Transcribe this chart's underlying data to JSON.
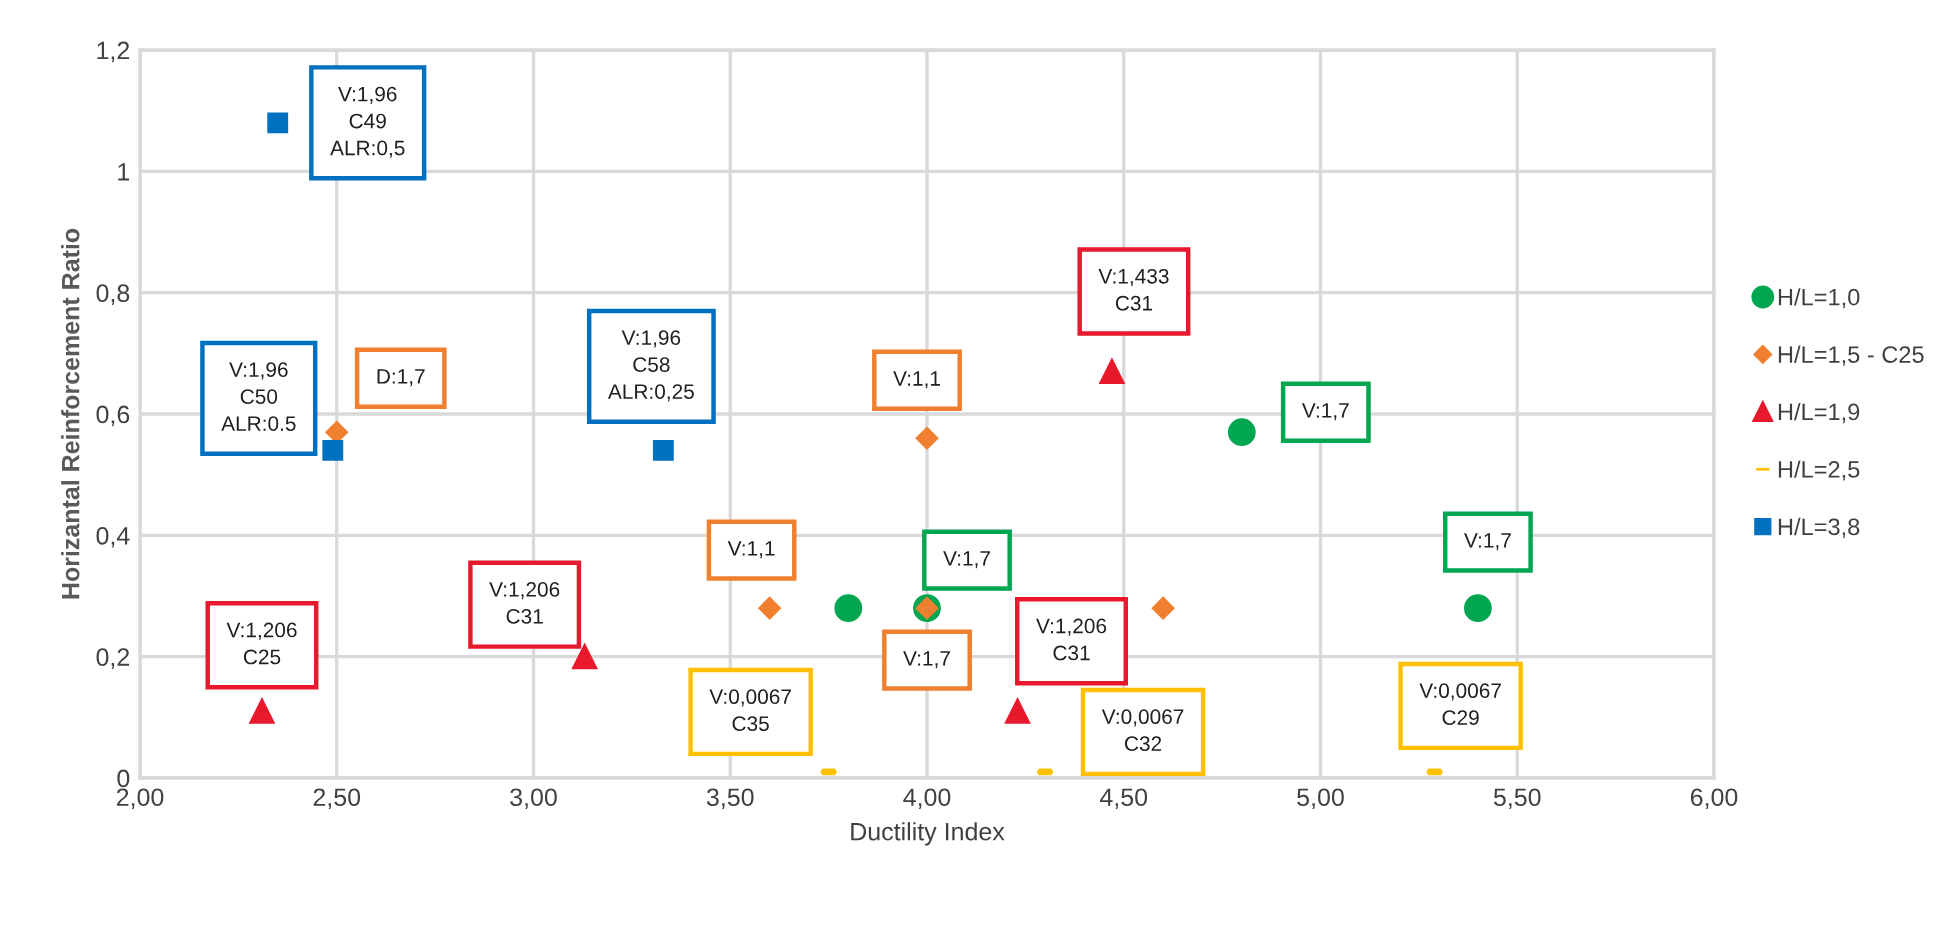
{
  "chart_data": {
    "type": "scatter",
    "xlabel": "Ductility Index",
    "ylabel": "Horizantal Reinforcement Ratio",
    "xlim": [
      2,
      6
    ],
    "ylim": [
      0,
      1.2
    ],
    "xticks": [
      {
        "value": 2,
        "label": "2,00"
      },
      {
        "value": 2.5,
        "label": "2,50"
      },
      {
        "value": 3,
        "label": "3,00"
      },
      {
        "value": 3.5,
        "label": "3,50"
      },
      {
        "value": 4,
        "label": "4,00"
      },
      {
        "value": 4.5,
        "label": "4,50"
      },
      {
        "value": 5,
        "label": "5,00"
      },
      {
        "value": 5.5,
        "label": "5,50"
      },
      {
        "value": 6,
        "label": "6,00"
      }
    ],
    "yticks": [
      0,
      {
        "value": 0.2,
        "label": "0,2"
      },
      {
        "value": 0.4,
        "label": "0,4"
      },
      {
        "value": 0.6,
        "label": "0,6"
      },
      {
        "value": 0.8,
        "label": "0,8"
      },
      1,
      {
        "value": 1.2,
        "label": "1,2"
      }
    ],
    "grid": true,
    "legend": "right",
    "series": [
      {
        "name": "H/L=1,0",
        "color": "#00a650",
        "marker": "circle",
        "x": [
          3.8,
          4.0,
          4.8,
          5.4
        ],
        "values": [
          0.28,
          0.28,
          0.57,
          0.28
        ]
      },
      {
        "name": "H/L=1,5 - C25",
        "color": "#f07f2f",
        "marker": "diamond",
        "x": [
          2.5,
          3.6,
          4.0,
          4.0,
          4.6
        ],
        "values": [
          0.57,
          0.28,
          0.56,
          0.28,
          0.28
        ]
      },
      {
        "name": "H/L=1,9",
        "color": "#e8192c",
        "marker": "triangle",
        "x": [
          2.31,
          3.13,
          4.23,
          4.47
        ],
        "values": [
          0.11,
          0.2,
          0.11,
          0.67
        ]
      },
      {
        "name": "H/L=2,5",
        "color": "#ffc000",
        "x": [
          3.75,
          4.3,
          5.29
        ],
        "values": [
          0.01,
          0.01,
          0.01
        ]
      },
      {
        "name": "H/L=3,8",
        "color": "#0070c0",
        "marker": "square",
        "x": [
          2.35,
          2.49,
          3.33
        ],
        "values": [
          1.08,
          0.54,
          0.54
        ]
      }
    ],
    "annotations": [
      {
        "text": "V:1,96\nC49\nALR:0,5",
        "x": 2.35,
        "y": 1.08
      },
      {
        "text": "V:1,96\nC50\nALR:0.5",
        "x": 2.49,
        "y": 0.54
      },
      {
        "text": "D:1,7",
        "x": 2.5,
        "y": 0.57
      },
      {
        "text": "V:1,96\nC58\nALR:0,25",
        "x": 3.33,
        "y": 0.54
      },
      {
        "text": "V:1,1",
        "x": 3.6,
        "y": 0.28
      },
      {
        "text": "V:1,1",
        "x": 4.0,
        "y": 0.56
      },
      {
        "text": "V:1,7",
        "x": 4.0,
        "y": 0.28
      },
      {
        "text": "V:1,7",
        "x": 4.0,
        "y": 0.28
      },
      {
        "text": "V:1,7",
        "x": 4.8,
        "y": 0.57
      },
      {
        "text": "V:1,7",
        "x": 5.4,
        "y": 0.28
      },
      {
        "text": "V:1,206\nC25",
        "x": 2.31,
        "y": 0.11
      },
      {
        "text": "V:1,206\nC31",
        "x": 3.13,
        "y": 0.2
      },
      {
        "text": "V:1,433\nC31",
        "x": 4.47,
        "y": 0.67
      },
      {
        "text": "V:1,206\nC31",
        "x": 4.23,
        "y": 0.11
      },
      {
        "text": "V:0,0067\nC35",
        "x": 3.75,
        "y": 0.01
      },
      {
        "text": "V:0,0067\nC32",
        "x": 4.3,
        "y": 0.01
      },
      {
        "text": "V:0,0067\nC29",
        "x": 5.29,
        "y": 0.01
      }
    ]
  }
}
